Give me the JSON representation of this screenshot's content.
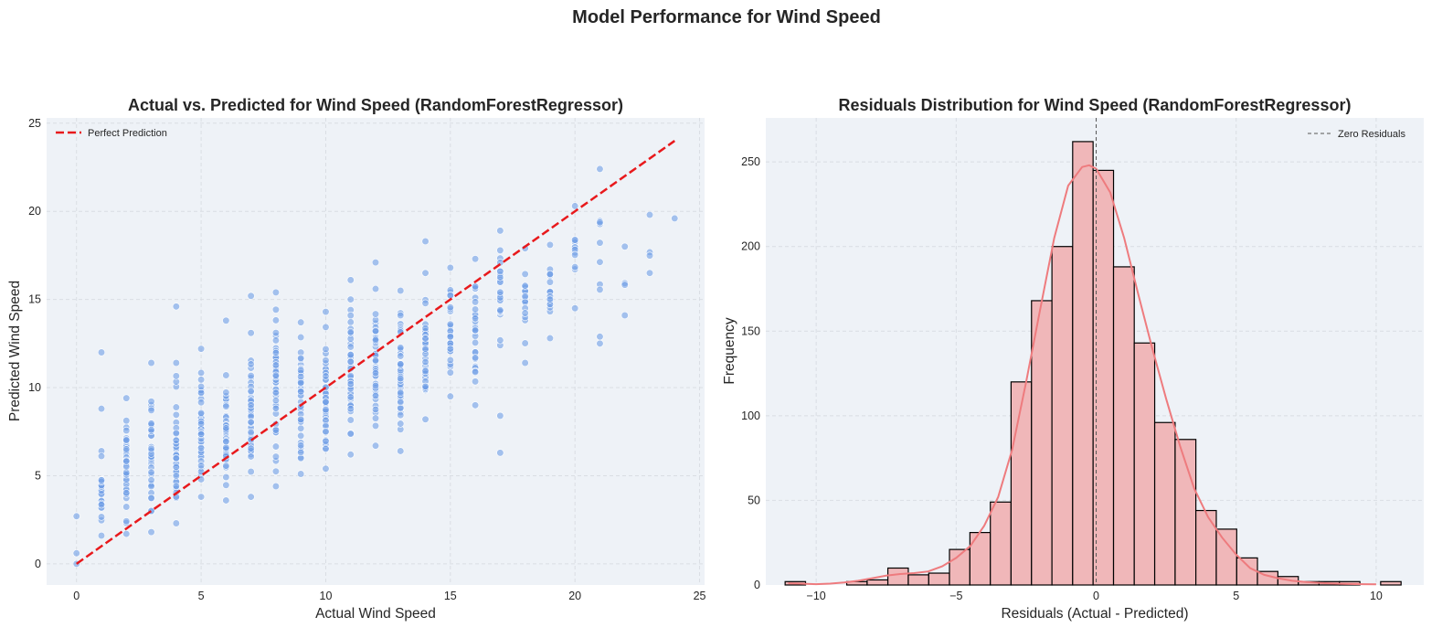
{
  "figure": {
    "suptitle": "Model Performance for Wind Speed"
  },
  "chart_data": [
    {
      "type": "scatter",
      "title": "Actual vs. Predicted for Wind Speed (RandomForestRegressor)",
      "xlabel": "Actual Wind Speed",
      "ylabel": "Predicted Wind Speed",
      "xlim": [
        -1.2,
        25.2
      ],
      "ylim": [
        -1.2,
        25.3
      ],
      "xticks": [
        0,
        5,
        10,
        15,
        20,
        25
      ],
      "yticks": [
        0,
        5,
        10,
        15,
        20,
        25
      ],
      "grid": true,
      "legend": {
        "placement": "top-left",
        "entries": [
          "Perfect Prediction"
        ]
      },
      "point_color": "#6f9ee6",
      "line_color": "#e8191c",
      "reference_line": {
        "x": [
          0,
          24
        ],
        "y": [
          0,
          24
        ]
      },
      "groups": [
        {
          "x": 0,
          "points": [
            0.0,
            0.6,
            2.7
          ]
        },
        {
          "x": 1,
          "min": 1.6,
          "max": 6.4,
          "n": 30,
          "extra": [
            8.8,
            12.0
          ]
        },
        {
          "x": 2,
          "min": 1.7,
          "max": 9.4,
          "n": 38
        },
        {
          "x": 3,
          "min": 1.8,
          "max": 11.4,
          "n": 40
        },
        {
          "x": 4,
          "min": 2.3,
          "max": 11.4,
          "n": 42,
          "extra": [
            14.6
          ]
        },
        {
          "x": 5,
          "min": 3.8,
          "max": 12.2,
          "n": 48
        },
        {
          "x": 6,
          "min": 3.6,
          "max": 10.7,
          "n": 42,
          "extra": [
            13.8
          ]
        },
        {
          "x": 7,
          "min": 3.8,
          "max": 13.1,
          "n": 44,
          "extra": [
            15.2
          ]
        },
        {
          "x": 8,
          "min": 4.4,
          "max": 15.4,
          "n": 50
        },
        {
          "x": 9,
          "min": 5.1,
          "max": 13.7,
          "n": 48
        },
        {
          "x": 10,
          "min": 5.4,
          "max": 14.3,
          "n": 52
        },
        {
          "x": 11,
          "min": 6.2,
          "max": 16.1,
          "n": 50
        },
        {
          "x": 12,
          "min": 6.7,
          "max": 15.6,
          "n": 46,
          "extra": [
            17.1
          ]
        },
        {
          "x": 13,
          "min": 6.4,
          "max": 15.5,
          "n": 44
        },
        {
          "x": 14,
          "min": 8.2,
          "max": 16.5,
          "n": 40,
          "extra": [
            18.3
          ]
        },
        {
          "x": 15,
          "min": 9.5,
          "max": 16.8,
          "n": 34
        },
        {
          "x": 16,
          "min": 9.0,
          "max": 17.3,
          "n": 32
        },
        {
          "x": 17,
          "min": 12.4,
          "max": 18.9,
          "n": 24,
          "extra": [
            8.4,
            6.3
          ]
        },
        {
          "x": 18,
          "min": 11.4,
          "max": 17.9,
          "n": 20
        },
        {
          "x": 19,
          "min": 12.8,
          "max": 18.1,
          "n": 18
        },
        {
          "x": 20,
          "min": 14.5,
          "max": 20.3,
          "n": 12
        },
        {
          "x": 21,
          "min": 12.5,
          "max": 22.4,
          "n": 10
        },
        {
          "x": 22,
          "min": 14.1,
          "max": 18.0,
          "n": 4
        },
        {
          "x": 23,
          "min": 16.5,
          "max": 19.8,
          "n": 4
        },
        {
          "x": 24,
          "points": [
            19.6
          ]
        }
      ]
    },
    {
      "type": "histogram",
      "title": "Residuals Distribution for Wind Speed (RandomForestRegressor)",
      "xlabel": "Residuals (Actual - Predicted)",
      "ylabel": "Frequency",
      "xlim": [
        -11.8,
        11.7
      ],
      "ylim": [
        0,
        276
      ],
      "xticks": [
        -10,
        -5,
        0,
        5,
        10
      ],
      "yticks": [
        0,
        50,
        100,
        150,
        200,
        250
      ],
      "grid": true,
      "legend": {
        "placement": "top-right",
        "entries": [
          "Zero Residuals"
        ]
      },
      "bar_color": "#f0b7b9",
      "edge_color": "#000000",
      "kde_color": "#ee7b7e",
      "bin_edges": [
        -11.11,
        -10.38,
        -9.64,
        -8.91,
        -8.18,
        -7.44,
        -6.71,
        -5.98,
        -5.24,
        -4.51,
        -3.78,
        -3.04,
        -2.31,
        -1.58,
        -0.84,
        -0.11,
        0.62,
        1.36,
        2.09,
        2.82,
        3.56,
        4.29,
        5.02,
        5.76,
        6.49,
        7.22,
        7.96,
        8.69,
        9.42,
        10.16,
        10.89
      ],
      "counts": [
        2,
        0,
        0,
        2,
        3,
        10,
        6,
        7,
        21,
        31,
        49,
        120,
        168,
        200,
        262,
        245,
        188,
        143,
        96,
        86,
        44,
        33,
        16,
        8,
        5,
        2,
        2,
        2,
        0,
        2
      ],
      "kde": {
        "x": [
          -11,
          -10,
          -9.5,
          -9,
          -8.5,
          -8,
          -7.5,
          -7,
          -6.5,
          -6,
          -5.5,
          -5,
          -4.5,
          -4,
          -3.5,
          -3,
          -2.5,
          -2,
          -1.5,
          -1,
          -0.5,
          -0.25,
          0,
          0.5,
          1,
          1.5,
          2,
          2.5,
          3,
          3.5,
          4,
          4.5,
          5,
          5.5,
          6,
          6.5,
          7,
          7.5,
          8,
          8.5,
          9,
          9.5,
          10
        ],
        "y": [
          1,
          0.5,
          0.8,
          1.5,
          2.5,
          4,
          5.5,
          6.5,
          7,
          8,
          11,
          16,
          23,
          35,
          52,
          80,
          120,
          163,
          205,
          236,
          247,
          248,
          246,
          232,
          205,
          172,
          140,
          110,
          82,
          57,
          40,
          28,
          18,
          10,
          6,
          4,
          2.5,
          1.8,
          1.2,
          0.8,
          0.6,
          0.5,
          0.4
        ]
      },
      "vline": {
        "x": 0,
        "label": "Zero Residuals"
      }
    }
  ]
}
